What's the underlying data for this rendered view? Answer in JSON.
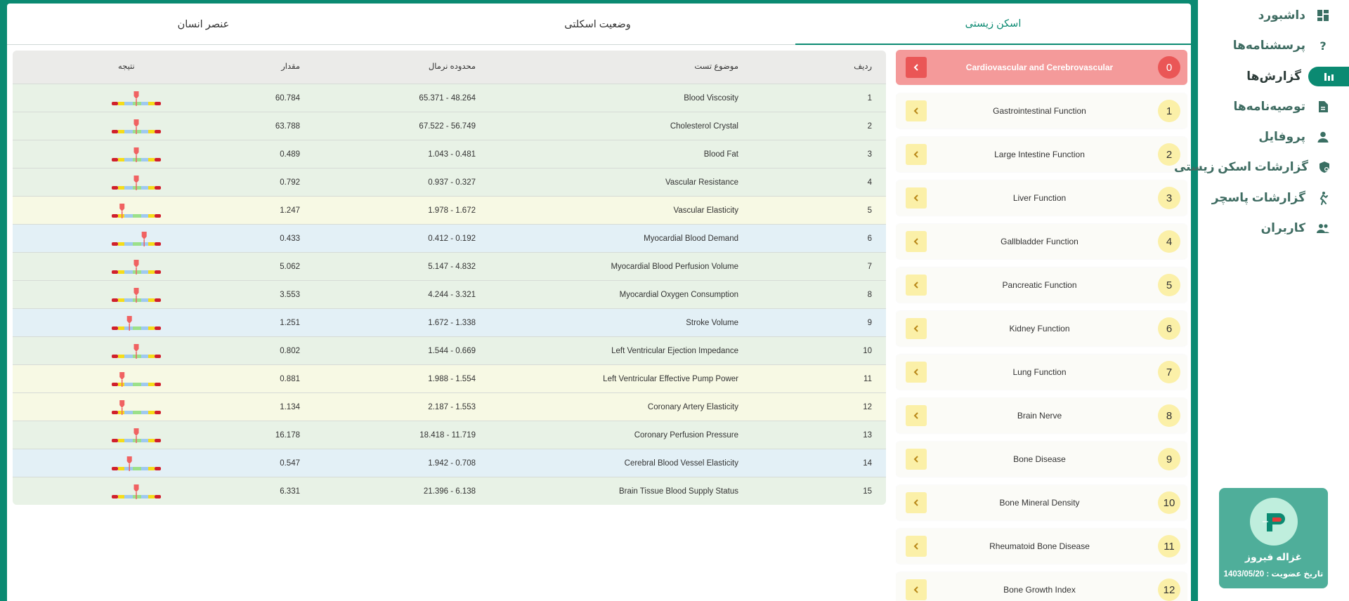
{
  "sidebar": {
    "items": [
      {
        "label": "داشبورد",
        "icon": "dashboard-icon",
        "active": false
      },
      {
        "label": "پرسشنامه‌ها",
        "icon": "question-icon",
        "active": false
      },
      {
        "label": "گزارش‌ها",
        "icon": "chart-icon",
        "active": true
      },
      {
        "label": "توصیه‌نامه‌ها",
        "icon": "document-icon",
        "active": false
      },
      {
        "label": "پروفایل",
        "icon": "person-icon",
        "active": false
      },
      {
        "label": "گزارشات اسکن زیستی",
        "icon": "shield-icon",
        "active": false
      },
      {
        "label": "گزارشات پاسچر",
        "icon": "posture-icon",
        "active": false
      },
      {
        "label": "کاربران",
        "icon": "users-icon",
        "active": false
      }
    ],
    "profile": {
      "name": "غزاله فیروز",
      "membership_date": "تاریخ عضویت : 1403/05/20"
    }
  },
  "tabs": [
    {
      "label": "اسکن زیستی",
      "active": true
    },
    {
      "label": "وضعیت اسکلتی",
      "active": false
    },
    {
      "label": "عنصر انسان",
      "active": false
    }
  ],
  "categories": [
    {
      "num": "0",
      "label": "Cardiovascular and Cerebrovascular",
      "active": true
    },
    {
      "num": "1",
      "label": "Gastrointestinal Function"
    },
    {
      "num": "2",
      "label": "Large Intestine Function"
    },
    {
      "num": "3",
      "label": "Liver Function"
    },
    {
      "num": "4",
      "label": "Gallbladder Function"
    },
    {
      "num": "5",
      "label": "Pancreatic Function"
    },
    {
      "num": "6",
      "label": "Kidney Function"
    },
    {
      "num": "7",
      "label": "Lung Function"
    },
    {
      "num": "8",
      "label": "Brain Nerve"
    },
    {
      "num": "9",
      "label": "Bone Disease"
    },
    {
      "num": "10",
      "label": "Bone Mineral Density"
    },
    {
      "num": "11",
      "label": "Rheumatoid Bone Disease"
    },
    {
      "num": "12",
      "label": "Bone Growth Index"
    }
  ],
  "table": {
    "headers": {
      "num": "ردیف",
      "topic": "موضوع تست",
      "range": "محدوده نرمال",
      "value": "مقدار",
      "result": "نتیجه"
    },
    "rows": [
      {
        "num": "1",
        "topic": "Blood Viscosity",
        "range": "65.371 - 48.264",
        "value": "60.784",
        "tint": "g",
        "marker": 0.5
      },
      {
        "num": "2",
        "topic": "Cholesterol Crystal",
        "range": "67.522 - 56.749",
        "value": "63.788",
        "tint": "g",
        "marker": 0.5
      },
      {
        "num": "3",
        "topic": "Blood Fat",
        "range": "1.043 - 0.481",
        "value": "0.489",
        "tint": "g",
        "marker": 0.5
      },
      {
        "num": "4",
        "topic": "Vascular Resistance",
        "range": "0.937 - 0.327",
        "value": "0.792",
        "tint": "g",
        "marker": 0.5
      },
      {
        "num": "5",
        "topic": "Vascular Elasticity",
        "range": "1.978 - 1.672",
        "value": "1.247",
        "tint": "y",
        "marker": 0.21
      },
      {
        "num": "6",
        "topic": "Myocardial Blood Demand",
        "range": "0.412 - 0.192",
        "value": "0.433",
        "tint": "b",
        "marker": 0.66
      },
      {
        "num": "7",
        "topic": "Myocardial Blood Perfusion Volume",
        "range": "5.147 - 4.832",
        "value": "5.062",
        "tint": "g",
        "marker": 0.5
      },
      {
        "num": "8",
        "topic": "Myocardial Oxygen Consumption",
        "range": "4.244 - 3.321",
        "value": "3.553",
        "tint": "g",
        "marker": 0.5
      },
      {
        "num": "9",
        "topic": "Stroke Volume",
        "range": "1.672 - 1.338",
        "value": "1.251",
        "tint": "b",
        "marker": 0.36
      },
      {
        "num": "10",
        "topic": "Left Ventricular Ejection Impedance",
        "range": "1.544 - 0.669",
        "value": "0.802",
        "tint": "g",
        "marker": 0.5
      },
      {
        "num": "11",
        "topic": "Left Ventricular Effective Pump Power",
        "range": "1.988 - 1.554",
        "value": "0.881",
        "tint": "y",
        "marker": 0.21
      },
      {
        "num": "12",
        "topic": "Coronary Artery Elasticity",
        "range": "2.187 - 1.553",
        "value": "1.134",
        "tint": "y",
        "marker": 0.21
      },
      {
        "num": "13",
        "topic": "Coronary Perfusion Pressure",
        "range": "18.418 - 11.719",
        "value": "16.178",
        "tint": "g",
        "marker": 0.5
      },
      {
        "num": "14",
        "topic": "Cerebral Blood Vessel Elasticity",
        "range": "1.942 - 0.708",
        "value": "0.547",
        "tint": "b",
        "marker": 0.36
      },
      {
        "num": "15",
        "topic": "Brain Tissue Blood Supply Status",
        "range": "21.396 - 6.138",
        "value": "6.331",
        "tint": "g",
        "marker": 0.5
      }
    ]
  },
  "colors": {
    "brand": "#0b8a72",
    "active_category": "#f49a9a",
    "gauge_red": "#d0202c",
    "gauge_yellow": "#f5dc1a",
    "gauge_green": "#9be08a",
    "gauge_blue": "#9fc9f0",
    "marker": "#f06262"
  }
}
